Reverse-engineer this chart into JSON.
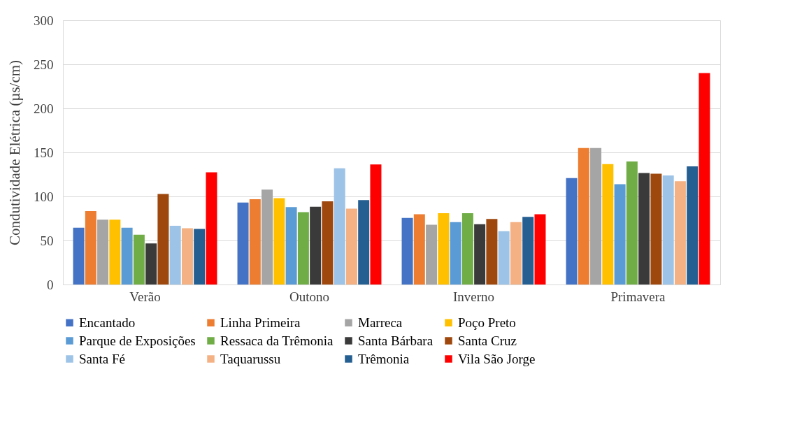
{
  "chart_data": {
    "type": "bar",
    "ylabel": "Condutividade Elétrica (µs/cm)",
    "categories": [
      "Verão",
      "Outono",
      "Inverno",
      "Primavera"
    ],
    "ylim": [
      0,
      300
    ],
    "yticks": [
      0,
      50,
      100,
      150,
      200,
      250,
      300
    ],
    "grid": "y",
    "legend": "bottom",
    "series": [
      {
        "name": "Encantado",
        "color": "#4472c4",
        "values": [
          64.5,
          93,
          75.6,
          120.9
        ]
      },
      {
        "name": "Linha Primeira",
        "color": "#ed7d31",
        "values": [
          83.3,
          96.8,
          79.8,
          155
        ]
      },
      {
        "name": "Marreca",
        "color": "#a5a5a5",
        "values": [
          73.7,
          107.7,
          67.9,
          155
        ]
      },
      {
        "name": "Poço Preto",
        "color": "#ffc000",
        "values": [
          73.7,
          98.1,
          80.9,
          136.8
        ]
      },
      {
        "name": "Parque de Exposições",
        "color": "#5b9bd5",
        "values": [
          64.5,
          87.8,
          70.8,
          113.8
        ]
      },
      {
        "name": "Ressaca da Trêmonia",
        "color": "#70ad47",
        "values": [
          56.5,
          82.2,
          80.9,
          139.7
        ]
      },
      {
        "name": "Santa Bárbara",
        "color": "#3a3a3a",
        "values": [
          46.7,
          88.3,
          68.4,
          126.5
        ]
      },
      {
        "name": "Santa Cruz",
        "color": "#9e480e",
        "values": [
          102.7,
          94.4,
          74.5,
          125.7
        ]
      },
      {
        "name": "Santa Fé",
        "color": "#9dc3e6",
        "values": [
          66.6,
          132,
          60.5,
          123.8
        ]
      },
      {
        "name": "Taquarussu",
        "color": "#f4b183",
        "values": [
          63.9,
          86.2,
          70.8,
          117.2
        ]
      },
      {
        "name": "Trêmonia",
        "color": "#255e91",
        "values": [
          63.1,
          95.8,
          76.7,
          134.1
        ]
      },
      {
        "name": "Vila São Jorge",
        "color": "#ff0000",
        "values": [
          127.3,
          136.3,
          79.8,
          240
        ]
      }
    ]
  }
}
